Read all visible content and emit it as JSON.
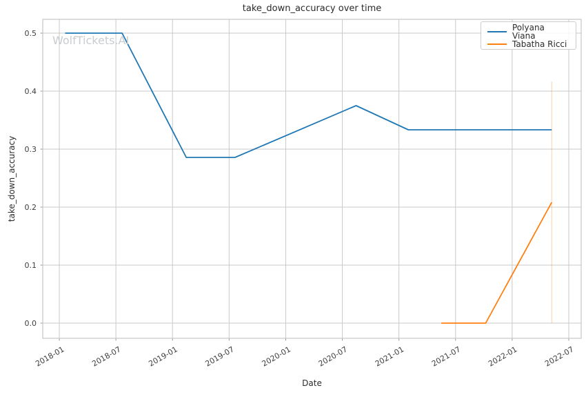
{
  "watermark": {
    "text": "WolfTickets.AI"
  },
  "colors": {
    "grid": "#c9c9c9",
    "spine": "#c6c6c6",
    "tick_mark": "#9a9a9a",
    "tick_label": "#3d3d3d",
    "text": "#2b2b2b",
    "watermark": "#c9ccd0",
    "background": "#ffffff"
  },
  "chart_data": {
    "type": "line",
    "title": "take_down_accuracy over time",
    "xlabel": "Date",
    "ylabel": "take_down_accuracy",
    "grid": true,
    "legend_position": "upper right",
    "x_ticks": [
      "2018-01",
      "2018-07",
      "2019-01",
      "2019-07",
      "2020-01",
      "2020-07",
      "2021-01",
      "2021-07",
      "2022-01",
      "2022-07"
    ],
    "y_ticks": [
      0.0,
      0.1,
      0.2,
      0.3,
      0.4,
      0.5
    ],
    "xlim_months": [
      -1.754,
      55.316
    ],
    "ylim": [
      -0.0262,
      0.5238
    ],
    "series": [
      {
        "name": "Polyana Viana",
        "color": "#1f77b4",
        "points": [
          [
            "2018-01-20",
            0.5
          ],
          [
            "2018-07-21",
            0.5
          ],
          [
            "2019-02-15",
            0.2857
          ],
          [
            "2019-07-20",
            0.2857
          ],
          [
            "2020-08-15",
            0.375
          ],
          [
            "2021-02-01",
            0.3333
          ],
          [
            "2022-05-07",
            0.3333
          ]
        ]
      },
      {
        "name": "Tabatha Ricci",
        "color": "#ff7f0e",
        "points": [
          [
            "2021-05-16",
            0.0
          ],
          [
            "2021-10-07",
            0.0
          ],
          [
            "2022-05-07",
            0.2083
          ]
        ]
      }
    ],
    "vline": {
      "x": "2022-05-07",
      "y_from": 0.0,
      "y_to": 0.4167,
      "color": "#ff7f0e",
      "opacity": 0.3
    }
  }
}
